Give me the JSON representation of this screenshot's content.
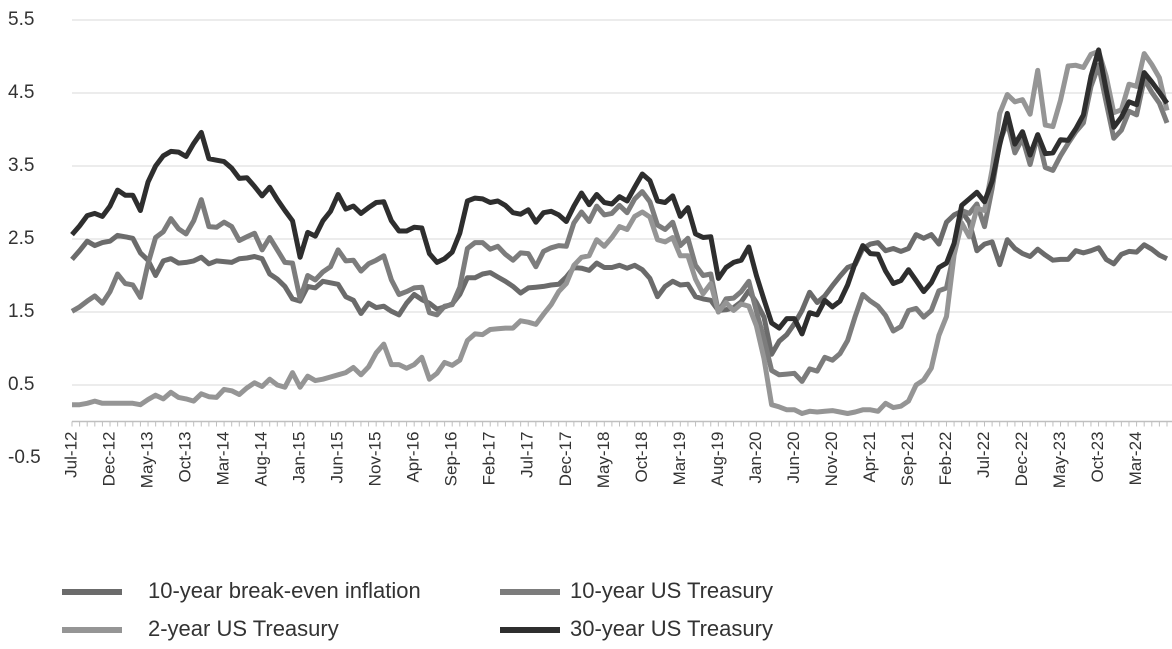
{
  "chart_data": {
    "type": "line",
    "categories": [
      "Jul-12",
      null,
      null,
      null,
      null,
      "Dec-12",
      null,
      null,
      null,
      null,
      "May-13",
      null,
      null,
      null,
      null,
      "Oct-13",
      null,
      null,
      null,
      null,
      "Mar-14",
      null,
      null,
      null,
      null,
      "Aug-14",
      null,
      null,
      null,
      null,
      "Jan-15",
      null,
      null,
      null,
      null,
      "Jun-15",
      null,
      null,
      null,
      null,
      "Nov-15",
      null,
      null,
      null,
      null,
      "Apr-16",
      null,
      null,
      null,
      null,
      "Sep-16",
      null,
      null,
      null,
      null,
      "Feb-17",
      null,
      null,
      null,
      null,
      "Jul-17",
      null,
      null,
      null,
      null,
      "Dec-17",
      null,
      null,
      null,
      null,
      "May-18",
      null,
      null,
      null,
      null,
      "Oct-18",
      null,
      null,
      null,
      null,
      "Mar-19",
      null,
      null,
      null,
      null,
      "Aug-19",
      null,
      null,
      null,
      null,
      "Jan-20",
      null,
      null,
      null,
      null,
      "Jun-20",
      null,
      null,
      null,
      null,
      "Nov-20",
      null,
      null,
      null,
      null,
      "Apr-21",
      null,
      null,
      null,
      null,
      "Sep-21",
      null,
      null,
      null,
      null,
      "Feb-22",
      null,
      null,
      null,
      null,
      "Jul-22",
      null,
      null,
      null,
      null,
      "Dec-22",
      null,
      null,
      null,
      null,
      "May-23",
      null,
      null,
      null,
      null,
      "Oct-23",
      null,
      null,
      null,
      null,
      "Mar-24",
      null,
      null,
      null,
      null
    ],
    "series": [
      {
        "name": "10-year break-even inflation",
        "color": "#6b6b6b",
        "values": [
          2.22,
          2.34,
          2.47,
          2.41,
          2.45,
          2.47,
          2.55,
          2.53,
          2.51,
          2.31,
          2.21,
          2.0,
          2.2,
          2.23,
          2.17,
          2.18,
          2.2,
          2.25,
          2.16,
          2.2,
          2.19,
          2.18,
          2.23,
          2.24,
          2.26,
          2.23,
          2.02,
          1.95,
          1.85,
          1.68,
          1.65,
          1.85,
          1.83,
          1.92,
          1.9,
          1.88,
          1.71,
          1.66,
          1.48,
          1.62,
          1.56,
          1.58,
          1.51,
          1.46,
          1.62,
          1.74,
          1.67,
          1.62,
          1.54,
          1.57,
          1.61,
          1.74,
          1.97,
          1.97,
          2.02,
          2.04,
          1.98,
          1.92,
          1.85,
          1.76,
          1.83,
          1.84,
          1.85,
          1.87,
          1.88,
          1.98,
          2.11,
          2.1,
          2.07,
          2.17,
          2.11,
          2.11,
          2.14,
          2.1,
          2.14,
          2.08,
          1.96,
          1.71,
          1.85,
          1.92,
          1.87,
          1.88,
          1.71,
          1.68,
          1.66,
          1.52,
          1.53,
          1.56,
          1.64,
          1.79,
          1.63,
          1.43,
          0.92,
          1.1,
          1.19,
          1.34,
          1.52,
          1.77,
          1.63,
          1.72,
          1.86,
          1.99,
          2.11,
          2.15,
          2.37,
          2.43,
          2.45,
          2.34,
          2.37,
          2.33,
          2.37,
          2.56,
          2.51,
          2.56,
          2.43,
          2.73,
          2.83,
          2.88,
          2.73,
          2.34,
          2.43,
          2.46,
          2.15,
          2.49,
          2.37,
          2.3,
          2.26,
          2.36,
          2.28,
          2.21,
          2.22,
          2.22,
          2.34,
          2.31,
          2.34,
          2.38,
          2.22,
          2.16,
          2.29,
          2.33,
          2.32,
          2.42,
          2.36,
          2.28,
          2.23
        ]
      },
      {
        "name": "10-year US Treasury",
        "color": "#7c7c7c",
        "values": [
          1.51,
          1.57,
          1.65,
          1.72,
          1.62,
          1.78,
          2.02,
          1.89,
          1.87,
          1.7,
          2.16,
          2.52,
          2.6,
          2.78,
          2.64,
          2.57,
          2.75,
          3.04,
          2.67,
          2.66,
          2.73,
          2.67,
          2.48,
          2.53,
          2.58,
          2.35,
          2.52,
          2.35,
          2.18,
          2.17,
          1.68,
          2.0,
          1.94,
          2.05,
          2.12,
          2.35,
          2.2,
          2.21,
          2.06,
          2.16,
          2.21,
          2.27,
          1.94,
          1.74,
          1.78,
          1.83,
          1.84,
          1.49,
          1.46,
          1.58,
          1.6,
          1.84,
          2.37,
          2.45,
          2.45,
          2.36,
          2.4,
          2.29,
          2.21,
          2.31,
          2.3,
          2.12,
          2.33,
          2.38,
          2.41,
          2.4,
          2.72,
          2.87,
          2.74,
          2.95,
          2.83,
          2.85,
          2.96,
          2.86,
          3.05,
          3.15,
          3.01,
          2.69,
          2.63,
          2.73,
          2.41,
          2.51,
          2.14,
          2.0,
          2.02,
          1.5,
          1.68,
          1.69,
          1.78,
          1.92,
          1.51,
          1.13,
          0.7,
          0.64,
          0.65,
          0.66,
          0.55,
          0.72,
          0.69,
          0.88,
          0.84,
          0.93,
          1.11,
          1.44,
          1.74,
          1.65,
          1.58,
          1.45,
          1.24,
          1.3,
          1.52,
          1.55,
          1.43,
          1.52,
          1.79,
          1.83,
          2.32,
          2.89,
          2.85,
          2.98,
          2.67,
          3.19,
          3.83,
          4.1,
          3.68,
          3.88,
          3.52,
          3.92,
          3.48,
          3.44,
          3.64,
          3.81,
          3.97,
          4.09,
          4.59,
          4.88,
          4.37,
          3.88,
          3.99,
          4.25,
          4.2,
          4.69,
          4.51,
          4.36,
          4.09
        ]
      },
      {
        "name": "2-year US Treasury",
        "color": "#959595",
        "values": [
          0.23,
          0.23,
          0.25,
          0.28,
          0.25,
          0.25,
          0.25,
          0.25,
          0.25,
          0.23,
          0.3,
          0.36,
          0.31,
          0.4,
          0.33,
          0.31,
          0.28,
          0.38,
          0.34,
          0.33,
          0.44,
          0.42,
          0.37,
          0.46,
          0.53,
          0.48,
          0.58,
          0.5,
          0.47,
          0.67,
          0.47,
          0.62,
          0.56,
          0.58,
          0.61,
          0.64,
          0.67,
          0.74,
          0.64,
          0.75,
          0.94,
          1.06,
          0.78,
          0.78,
          0.73,
          0.78,
          0.88,
          0.58,
          0.66,
          0.81,
          0.77,
          0.84,
          1.11,
          1.2,
          1.19,
          1.26,
          1.27,
          1.28,
          1.28,
          1.38,
          1.36,
          1.33,
          1.47,
          1.6,
          1.78,
          1.89,
          2.14,
          2.25,
          2.27,
          2.49,
          2.4,
          2.52,
          2.67,
          2.63,
          2.81,
          2.87,
          2.8,
          2.49,
          2.46,
          2.52,
          2.27,
          2.27,
          1.95,
          1.75,
          1.89,
          1.5,
          1.63,
          1.52,
          1.61,
          1.58,
          1.31,
          0.86,
          0.23,
          0.2,
          0.16,
          0.16,
          0.11,
          0.14,
          0.13,
          0.14,
          0.15,
          0.13,
          0.11,
          0.13,
          0.16,
          0.16,
          0.14,
          0.25,
          0.19,
          0.21,
          0.28,
          0.5,
          0.57,
          0.73,
          1.18,
          1.44,
          2.28,
          2.72,
          2.53,
          2.92,
          2.89,
          3.45,
          4.22,
          4.48,
          4.38,
          4.41,
          4.21,
          4.81,
          4.06,
          4.04,
          4.4,
          4.87,
          4.88,
          4.85,
          5.03,
          5.07,
          4.73,
          4.23,
          4.27,
          4.62,
          4.59,
          5.04,
          4.89,
          4.71,
          4.26
        ]
      },
      {
        "name": "30-year US Treasury",
        "color": "#2e2e2e",
        "values": [
          2.56,
          2.68,
          2.82,
          2.85,
          2.81,
          2.95,
          3.17,
          3.1,
          3.1,
          2.89,
          3.28,
          3.5,
          3.64,
          3.7,
          3.69,
          3.63,
          3.81,
          3.96,
          3.6,
          3.58,
          3.56,
          3.47,
          3.33,
          3.34,
          3.22,
          3.09,
          3.21,
          3.04,
          2.89,
          2.75,
          2.25,
          2.59,
          2.54,
          2.75,
          2.88,
          3.11,
          2.91,
          2.95,
          2.85,
          2.93,
          3.0,
          3.01,
          2.75,
          2.61,
          2.61,
          2.66,
          2.65,
          2.3,
          2.18,
          2.23,
          2.32,
          2.58,
          3.02,
          3.06,
          3.05,
          3.0,
          3.02,
          2.96,
          2.86,
          2.84,
          2.9,
          2.73,
          2.86,
          2.88,
          2.83,
          2.74,
          2.95,
          3.13,
          2.97,
          3.11,
          3.0,
          2.98,
          3.08,
          3.02,
          3.21,
          3.39,
          3.3,
          3.02,
          3.0,
          3.09,
          2.81,
          2.93,
          2.57,
          2.52,
          2.53,
          1.96,
          2.11,
          2.18,
          2.21,
          2.39,
          2.0,
          1.67,
          1.35,
          1.28,
          1.41,
          1.41,
          1.2,
          1.49,
          1.46,
          1.66,
          1.57,
          1.65,
          1.87,
          2.17,
          2.41,
          2.3,
          2.29,
          2.06,
          1.89,
          1.93,
          2.08,
          1.93,
          1.78,
          1.9,
          2.11,
          2.17,
          2.44,
          2.96,
          3.05,
          3.14,
          3.01,
          3.29,
          3.79,
          4.22,
          3.8,
          3.97,
          3.65,
          3.93,
          3.67,
          3.68,
          3.86,
          3.85,
          4.01,
          4.2,
          4.73,
          5.09,
          4.54,
          4.03,
          4.17,
          4.38,
          4.34,
          4.78,
          4.65,
          4.51,
          4.36
        ]
      }
    ],
    "ylim": [
      -0.5,
      5.5
    ],
    "yticks": [
      -0.5,
      0.5,
      1.5,
      2.5,
      3.5,
      4.5,
      5.5
    ],
    "grid": true,
    "legend": "bottom"
  }
}
